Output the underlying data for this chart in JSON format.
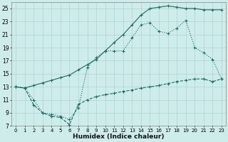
{
  "xlabel": "Humidex (Indice chaleur)",
  "bg_color": "#ceecea",
  "grid_color": "#aed4d2",
  "line_color": "#1a6b5e",
  "xlim": [
    -0.5,
    23.5
  ],
  "ylim": [
    7,
    26
  ],
  "xticks": [
    0,
    1,
    2,
    3,
    4,
    5,
    6,
    7,
    8,
    9,
    10,
    11,
    12,
    13,
    14,
    15,
    16,
    17,
    18,
    19,
    20,
    21,
    22,
    23
  ],
  "yticks": [
    7,
    9,
    11,
    13,
    15,
    17,
    19,
    21,
    23,
    25
  ],
  "line1_x": [
    0,
    1,
    2,
    3,
    4,
    5,
    6,
    7,
    8,
    9,
    10,
    11,
    12,
    13,
    14,
    15,
    16,
    17,
    18,
    19,
    20,
    21,
    22,
    23
  ],
  "line1_y": [
    13,
    12.8,
    13.2,
    13.6,
    14.0,
    14.4,
    14.8,
    15.6,
    16.4,
    17.2,
    18.5,
    19.8,
    21.0,
    22.5,
    24.0,
    25.0,
    25.2,
    25.4,
    25.2,
    25.0,
    25.0,
    24.8,
    24.8,
    24.8
  ],
  "line2_x": [
    0,
    1,
    2,
    3,
    4,
    5,
    6,
    7,
    8,
    9,
    10,
    11,
    12,
    13,
    14,
    15,
    16,
    17,
    18,
    19,
    20,
    21,
    22,
    23
  ],
  "line2_y": [
    13,
    12.8,
    11.0,
    9.0,
    8.8,
    8.5,
    8.0,
    9.8,
    16.0,
    17.5,
    18.5,
    18.5,
    18.5,
    20.5,
    22.5,
    22.8,
    21.5,
    21.2,
    22.0,
    23.2,
    19.0,
    18.2,
    17.2,
    14.2
  ],
  "line3_x": [
    0,
    1,
    2,
    3,
    4,
    5,
    6,
    7,
    8,
    9,
    10,
    11,
    12,
    13,
    14,
    15,
    16,
    17,
    18,
    19,
    20,
    21,
    22,
    23
  ],
  "line3_y": [
    13,
    12.8,
    10.2,
    9.0,
    8.5,
    8.3,
    7.2,
    10.3,
    11.0,
    11.5,
    11.8,
    12.0,
    12.3,
    12.5,
    12.8,
    13.0,
    13.2,
    13.5,
    13.8,
    14.0,
    14.2,
    14.2,
    13.8,
    14.2
  ]
}
